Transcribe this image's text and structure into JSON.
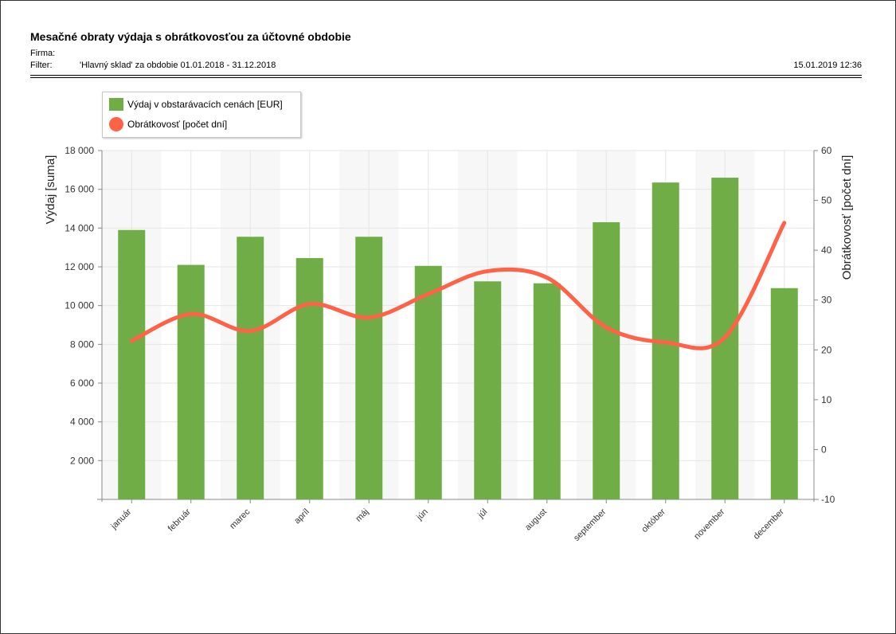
{
  "report": {
    "title": "Mesačné obraty výdaja s obrátkovosťou za účtovné obdobie",
    "firma_label": "Firma:",
    "firma_value": "",
    "filter_label": "Filter:",
    "filter_value": "'Hlavný sklad' za obdobie 01.01.2018 - 31.12.2018",
    "timestamp": "15.01.2019 12:36"
  },
  "colors": {
    "bar": "#70ad47",
    "line": "#ff6347",
    "plot_band": "#f7f7f7",
    "grid": "#e6e6e6"
  },
  "chart_data": {
    "type": "bar",
    "title": "",
    "categories": [
      "január",
      "február",
      "marec",
      "apríl",
      "máj",
      "jún",
      "júl",
      "august",
      "september",
      "október",
      "november",
      "december"
    ],
    "series": [
      {
        "name": "Výdaj v obstarávacích cenách [EUR]",
        "type": "bar",
        "axis": "left",
        "values": [
          13900,
          12100,
          13550,
          12450,
          13550,
          12050,
          11250,
          11150,
          14300,
          16350,
          16600,
          10900
        ]
      },
      {
        "name": "Obrátkovosť [počet dní]",
        "type": "line",
        "axis": "right",
        "smooth": true,
        "values": [
          21.8,
          27.2,
          23.8,
          29.2,
          26.5,
          31.2,
          35.8,
          34.5,
          24.5,
          21.5,
          22.5,
          45.5
        ]
      }
    ],
    "ylabel_left": "Výdaj [suma]",
    "ylabel_right": "Obrátkovosť [počet dní]",
    "ylim_left": [
      0,
      18000
    ],
    "ylim_right": [
      -10,
      60
    ],
    "yticks_left": [
      "",
      "2 000",
      "4 000",
      "6 000",
      "8 000",
      "10 000",
      "12 000",
      "14 000",
      "16 000",
      "18 000"
    ],
    "yticks_right": [
      "-10",
      "0",
      "10",
      "20",
      "30",
      "40",
      "50",
      "60"
    ],
    "grid": true,
    "legend_position": "top-left"
  }
}
